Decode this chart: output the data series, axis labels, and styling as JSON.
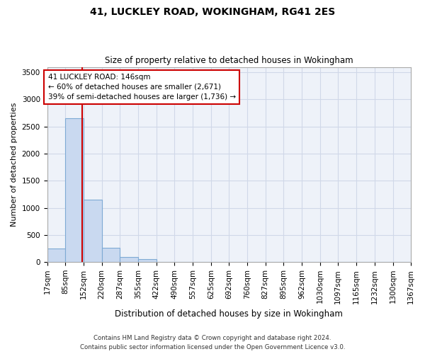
{
  "title1": "41, LUCKLEY ROAD, WOKINGHAM, RG41 2ES",
  "title2": "Size of property relative to detached houses in Wokingham",
  "xlabel": "Distribution of detached houses by size in Wokingham",
  "ylabel": "Number of detached properties",
  "footnote1": "Contains HM Land Registry data © Crown copyright and database right 2024.",
  "footnote2": "Contains public sector information licensed under the Open Government Licence v3.0.",
  "annotation_line1": "41 LUCKLEY ROAD: 146sqm",
  "annotation_line2": "← 60% of detached houses are smaller (2,671)",
  "annotation_line3": "39% of semi-detached houses are larger (1,736) →",
  "property_size": 146,
  "bin_edges": [
    17,
    85,
    152,
    220,
    287,
    355,
    422,
    490,
    557,
    625,
    692,
    760,
    827,
    895,
    962,
    1030,
    1097,
    1165,
    1232,
    1300,
    1367
  ],
  "bin_counts": [
    250,
    2650,
    1150,
    270,
    100,
    50,
    0,
    0,
    0,
    0,
    0,
    0,
    0,
    0,
    0,
    0,
    0,
    0,
    0,
    0
  ],
  "bar_color": "#c9d9f0",
  "bar_edge_color": "#7eaad4",
  "vline_color": "#cc0000",
  "annotation_box_color": "#cc0000",
  "grid_color": "#d0d8e8",
  "background_color": "#eef2f9",
  "ylim": [
    0,
    3600
  ],
  "yticks": [
    0,
    500,
    1000,
    1500,
    2000,
    2500,
    3000,
    3500
  ],
  "tick_label_fontsize": 7.5,
  "title1_fontsize": 10,
  "title2_fontsize": 8.5
}
